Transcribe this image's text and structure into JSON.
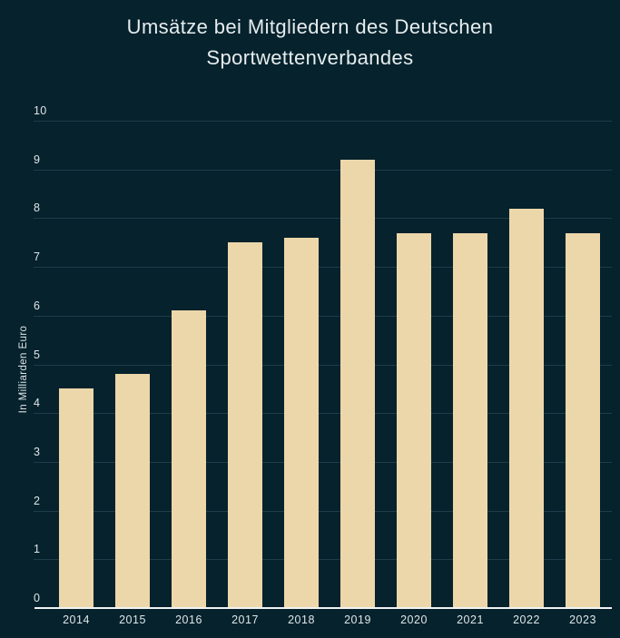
{
  "chart": {
    "title_line1": "Umsätze bei Mitgliedern des Deutschen",
    "title_line2": "Sportwettenverbandes"
  },
  "chart_data": {
    "type": "bar",
    "title": "Umsätze bei Mitgliedern des Deutschen Sportwettenverbandes",
    "categories": [
      "2014",
      "2015",
      "2016",
      "2017",
      "2018",
      "2019",
      "2020",
      "2021",
      "2022",
      "2023"
    ],
    "values": [
      4.5,
      4.8,
      6.1,
      7.5,
      7.6,
      9.2,
      7.7,
      7.7,
      8.2,
      7.7
    ],
    "xlabel": "",
    "ylabel": "In Milliarden Euro",
    "ylim": [
      0,
      10
    ],
    "ytick_step": 1,
    "grid": true,
    "legend": false,
    "colors": {
      "background": "#05222d",
      "bar": "#ecd7aa",
      "gridline": "#1e3c49",
      "axis_line": "#f2f2f2",
      "tick_text": "#dfe6e8",
      "title_text": "#e7edee"
    }
  }
}
